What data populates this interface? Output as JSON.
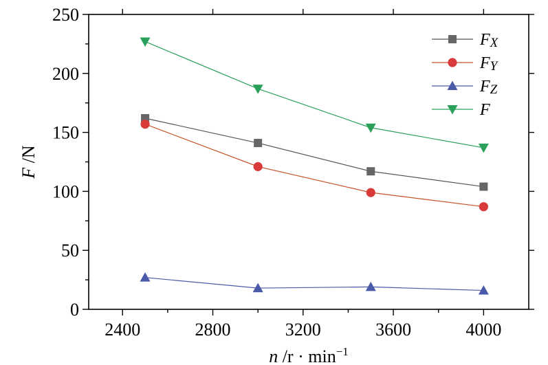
{
  "chart_data": {
    "type": "line",
    "x": [
      2500,
      3000,
      3500,
      4000
    ],
    "series": [
      {
        "name": "Fx",
        "label_main": "F",
        "label_sub": "X",
        "values": [
          162,
          141,
          117,
          104
        ],
        "color": "#666666",
        "line_color": "#555555",
        "marker": "square"
      },
      {
        "name": "Fy",
        "label_main": "F",
        "label_sub": "Y",
        "values": [
          157,
          121,
          99,
          87
        ],
        "color": "#d93a3a",
        "line_color": "#c8552a",
        "marker": "circle"
      },
      {
        "name": "Fz",
        "label_main": "F",
        "label_sub": "Z",
        "values": [
          27,
          18,
          19,
          16
        ],
        "color": "#4a5aa8",
        "line_color": "#4a5aa8",
        "marker": "triangle-up"
      },
      {
        "name": "F",
        "label_main": "F",
        "label_sub": "",
        "values": [
          227,
          187,
          154,
          137
        ],
        "color": "#2aa05a",
        "line_color": "#2aa05a",
        "marker": "triangle-down"
      }
    ],
    "xlim": [
      2250,
      4200
    ],
    "ylim": [
      0,
      250
    ],
    "x_ticks": [
      2400,
      2800,
      3200,
      3600,
      4000
    ],
    "x_tick_labels": [
      "2400",
      "2800",
      "3200",
      "3600",
      "4000"
    ],
    "y_ticks": [
      0,
      50,
      100,
      150,
      200,
      250
    ],
    "y_tick_labels": [
      "0",
      "50",
      "100",
      "150",
      "200",
      "250"
    ],
    "xlabel_main": "n",
    "xlabel_rest": " /r · min",
    "xlabel_sup": "−1",
    "ylabel_main": "F",
    "ylabel_rest": " /N",
    "grid": false,
    "legend_position": "top-right"
  }
}
